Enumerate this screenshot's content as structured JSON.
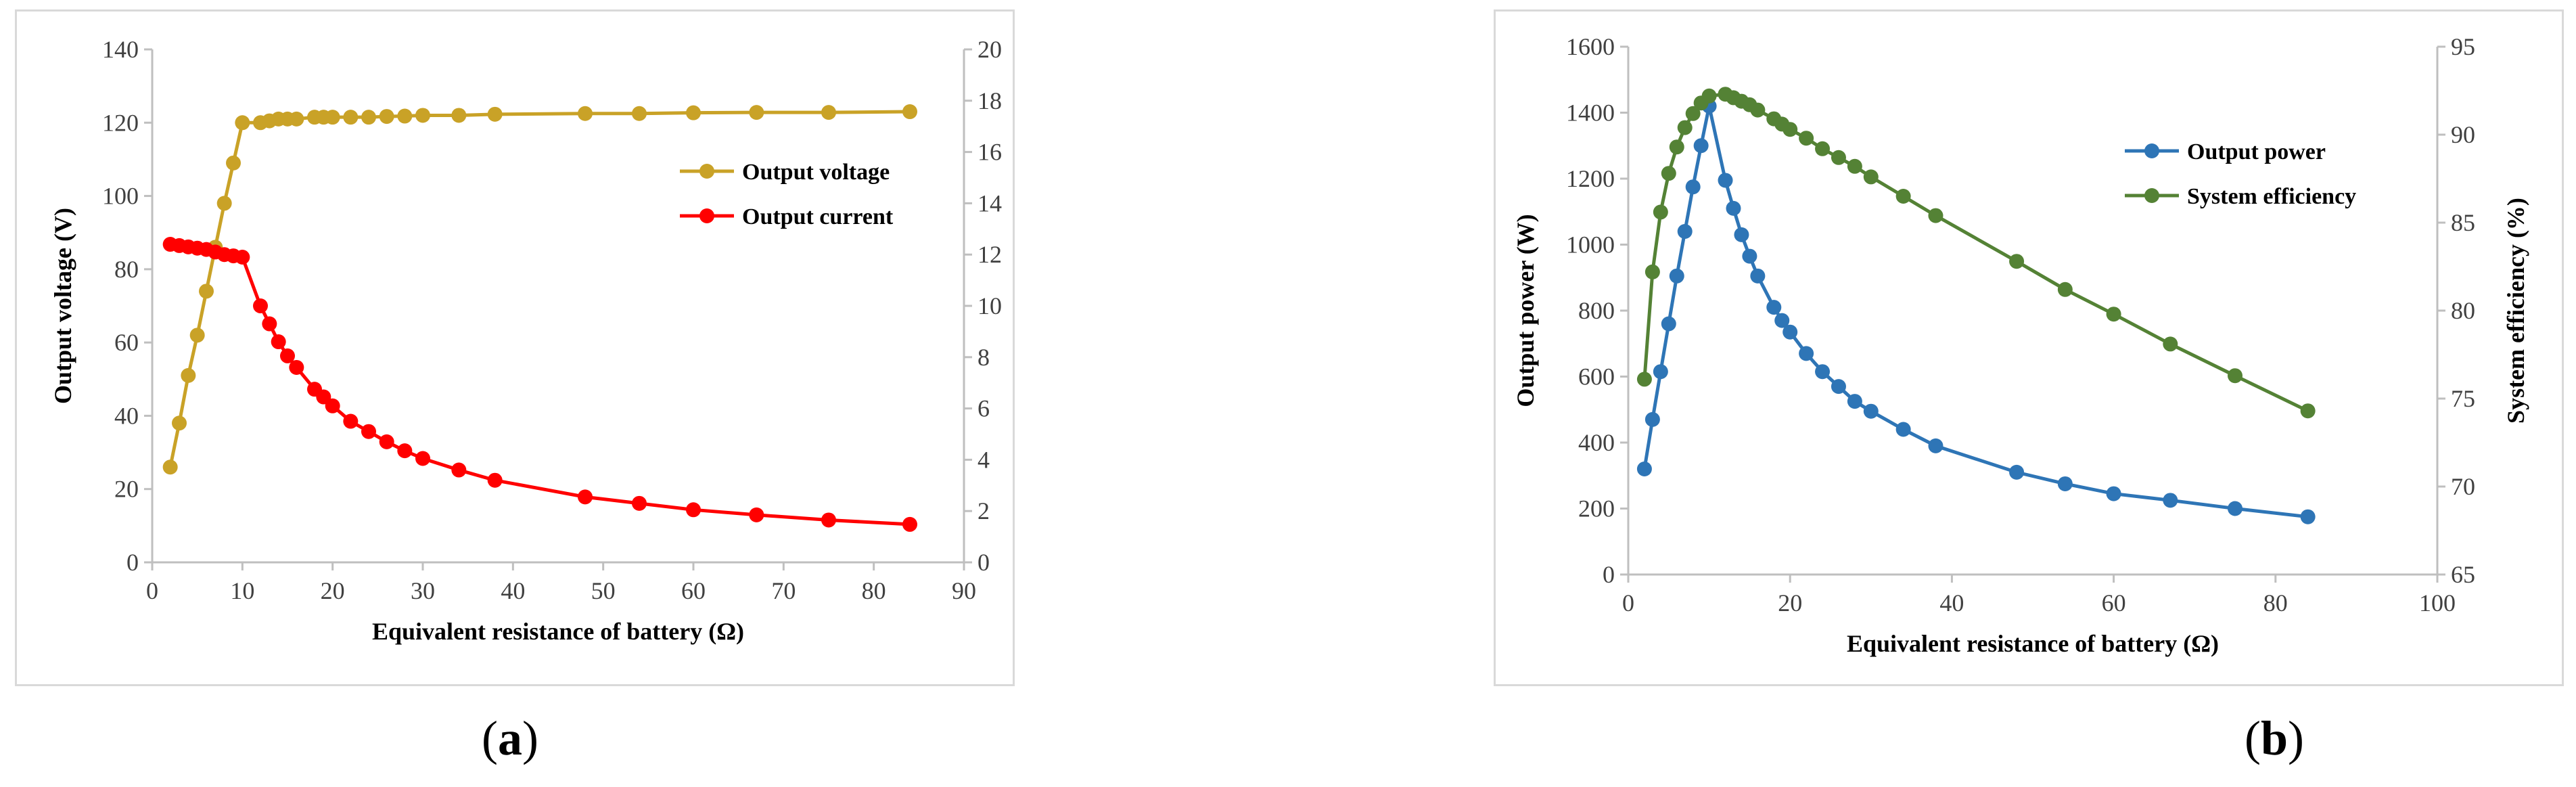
{
  "captions": {
    "a": "a",
    "b": "b"
  },
  "chart_data": [
    {
      "type": "line",
      "xlabel": "Equivalent resistance of battery (Ω)",
      "ylabel": "Output voltage (V)",
      "y2label": "Output current (A)",
      "xlim": [
        0,
        90
      ],
      "ylim": [
        0,
        140
      ],
      "y2lim": [
        0,
        20
      ],
      "xticks": [
        0,
        10,
        20,
        30,
        40,
        50,
        60,
        70,
        80,
        90
      ],
      "yticks": [
        0,
        20,
        40,
        60,
        80,
        100,
        120,
        140
      ],
      "y2ticks": [
        0,
        2,
        4,
        6,
        8,
        10,
        12,
        14,
        16,
        18,
        20
      ],
      "legend": "right",
      "grid": false,
      "series": [
        {
          "name": "Output voltage",
          "axis": "left",
          "color": "#c9a227",
          "x": [
            2,
            3,
            4,
            5,
            6,
            7,
            8,
            9,
            10,
            12,
            13,
            14,
            15,
            16,
            18,
            19,
            20,
            22,
            24,
            26,
            28,
            30,
            34,
            38,
            48,
            54,
            60,
            67,
            75,
            84
          ],
          "y": [
            26,
            38,
            51,
            62,
            74,
            86,
            98,
            109,
            120,
            120,
            120.5,
            121,
            121,
            121,
            121.5,
            121.5,
            121.5,
            121.5,
            121.5,
            121.7,
            121.8,
            122,
            122,
            122.3,
            122.5,
            122.5,
            122.7,
            122.8,
            122.8,
            123
          ]
        },
        {
          "name": "Output current",
          "axis": "right",
          "color": "#ff0000",
          "x": [
            2,
            3,
            4,
            5,
            6,
            7,
            8,
            9,
            10,
            12,
            13,
            14,
            15,
            16,
            18,
            19,
            20,
            22,
            24,
            26,
            28,
            30,
            34,
            38,
            48,
            54,
            60,
            67,
            75,
            84
          ],
          "y": [
            12.4,
            12.35,
            12.3,
            12.25,
            12.2,
            12.1,
            12.0,
            11.95,
            11.9,
            10.0,
            9.3,
            8.6,
            8.05,
            7.6,
            6.75,
            6.45,
            6.1,
            5.5,
            5.1,
            4.7,
            4.35,
            4.05,
            3.6,
            3.2,
            2.55,
            2.3,
            2.05,
            1.85,
            1.65,
            1.48
          ]
        }
      ]
    },
    {
      "type": "line",
      "xlabel": "Equivalent resistance of battery (Ω)",
      "ylabel": "Output power (W)",
      "y2label": "System efficiency (%)",
      "xlim": [
        0,
        100
      ],
      "ylim": [
        0,
        1600
      ],
      "y2lim": [
        65,
        95
      ],
      "xticks": [
        0,
        20,
        40,
        60,
        80,
        100
      ],
      "yticks": [
        0,
        200,
        400,
        600,
        800,
        1000,
        1200,
        1400,
        1600
      ],
      "y2ticks": [
        65,
        70,
        75,
        80,
        85,
        90,
        95
      ],
      "legend": "right",
      "grid": false,
      "series": [
        {
          "name": "Output power",
          "axis": "left",
          "color": "#2e75b6",
          "x": [
            2,
            3,
            4,
            5,
            6,
            7,
            8,
            9,
            10,
            12,
            13,
            14,
            15,
            16,
            18,
            19,
            20,
            22,
            24,
            26,
            28,
            30,
            34,
            38,
            48,
            54,
            60,
            67,
            75,
            84
          ],
          "y": [
            320,
            470,
            615,
            760,
            905,
            1040,
            1175,
            1300,
            1420,
            1195,
            1110,
            1030,
            965,
            905,
            810,
            770,
            735,
            670,
            615,
            570,
            525,
            495,
            440,
            390,
            310,
            275,
            245,
            225,
            200,
            175
          ]
        },
        {
          "name": "System efficiency",
          "axis": "right",
          "color": "#548235",
          "x": [
            2,
            3,
            4,
            5,
            6,
            7,
            8,
            9,
            10,
            12,
            13,
            14,
            15,
            16,
            18,
            19,
            20,
            22,
            24,
            26,
            28,
            30,
            34,
            38,
            48,
            54,
            60,
            67,
            75,
            84
          ],
          "y": [
            76.1,
            82.2,
            85.6,
            87.8,
            89.3,
            90.4,
            91.2,
            91.8,
            92.2,
            92.3,
            92.1,
            91.9,
            91.7,
            91.4,
            90.9,
            90.6,
            90.3,
            89.8,
            89.2,
            88.7,
            88.2,
            87.6,
            86.5,
            85.4,
            82.8,
            81.2,
            79.8,
            78.1,
            76.3,
            74.3
          ]
        }
      ]
    }
  ]
}
